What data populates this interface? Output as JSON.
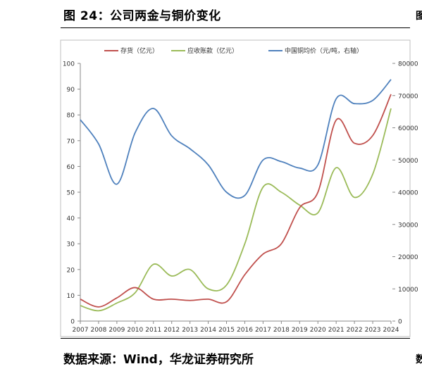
{
  "figure": {
    "title_prefix": "图 24：",
    "title_text": "公司两金与铜价变化",
    "source_text": "数据来源：Wind，华龙证券研究所",
    "edge_glyph_top": "图",
    "edge_glyph_bottom": "数"
  },
  "chart_data": {
    "type": "line",
    "title": "",
    "xlabel": "",
    "ylabel": "",
    "categories": [
      "2007",
      "2008",
      "2009",
      "2010",
      "2011",
      "2012",
      "2013",
      "2014",
      "2015",
      "2016",
      "2017",
      "2018",
      "2019",
      "2020",
      "2021",
      "2022",
      "2023",
      "2024"
    ],
    "ylim": [
      0,
      100
    ],
    "y2lim": [
      0,
      80000
    ],
    "yticks": [
      "0",
      "10",
      "20",
      "30",
      "40",
      "50",
      "60",
      "70",
      "80",
      "90",
      "100"
    ],
    "y2ticks": [
      "0",
      "10000",
      "20000",
      "30000",
      "40000",
      "50000",
      "60000",
      "70000",
      "80000"
    ],
    "legend_position": "top",
    "grid": false,
    "series": [
      {
        "name": "存货（亿元）",
        "axis": "left",
        "color": "#c0504d",
        "values": [
          8.5,
          5.5,
          9,
          13,
          8.5,
          8.5,
          8,
          8.5,
          7.5,
          18,
          26,
          30,
          44,
          50,
          78,
          69,
          72,
          88
        ]
      },
      {
        "name": "应收账款（亿元）",
        "axis": "left",
        "color": "#9bbb59",
        "values": [
          6,
          4,
          7,
          11,
          22,
          17.5,
          20,
          12.5,
          14,
          30,
          52,
          50,
          45,
          42,
          59.5,
          48,
          57,
          82.5
        ]
      },
      {
        "name": "中国铜均价（元/吨，右轴）",
        "axis": "right",
        "color": "#4f81bd",
        "values": [
          62500,
          55000,
          42500,
          58500,
          66000,
          57500,
          53500,
          48500,
          40000,
          39000,
          50000,
          49500,
          47500,
          48500,
          69000,
          67500,
          68500,
          75000
        ]
      }
    ]
  }
}
